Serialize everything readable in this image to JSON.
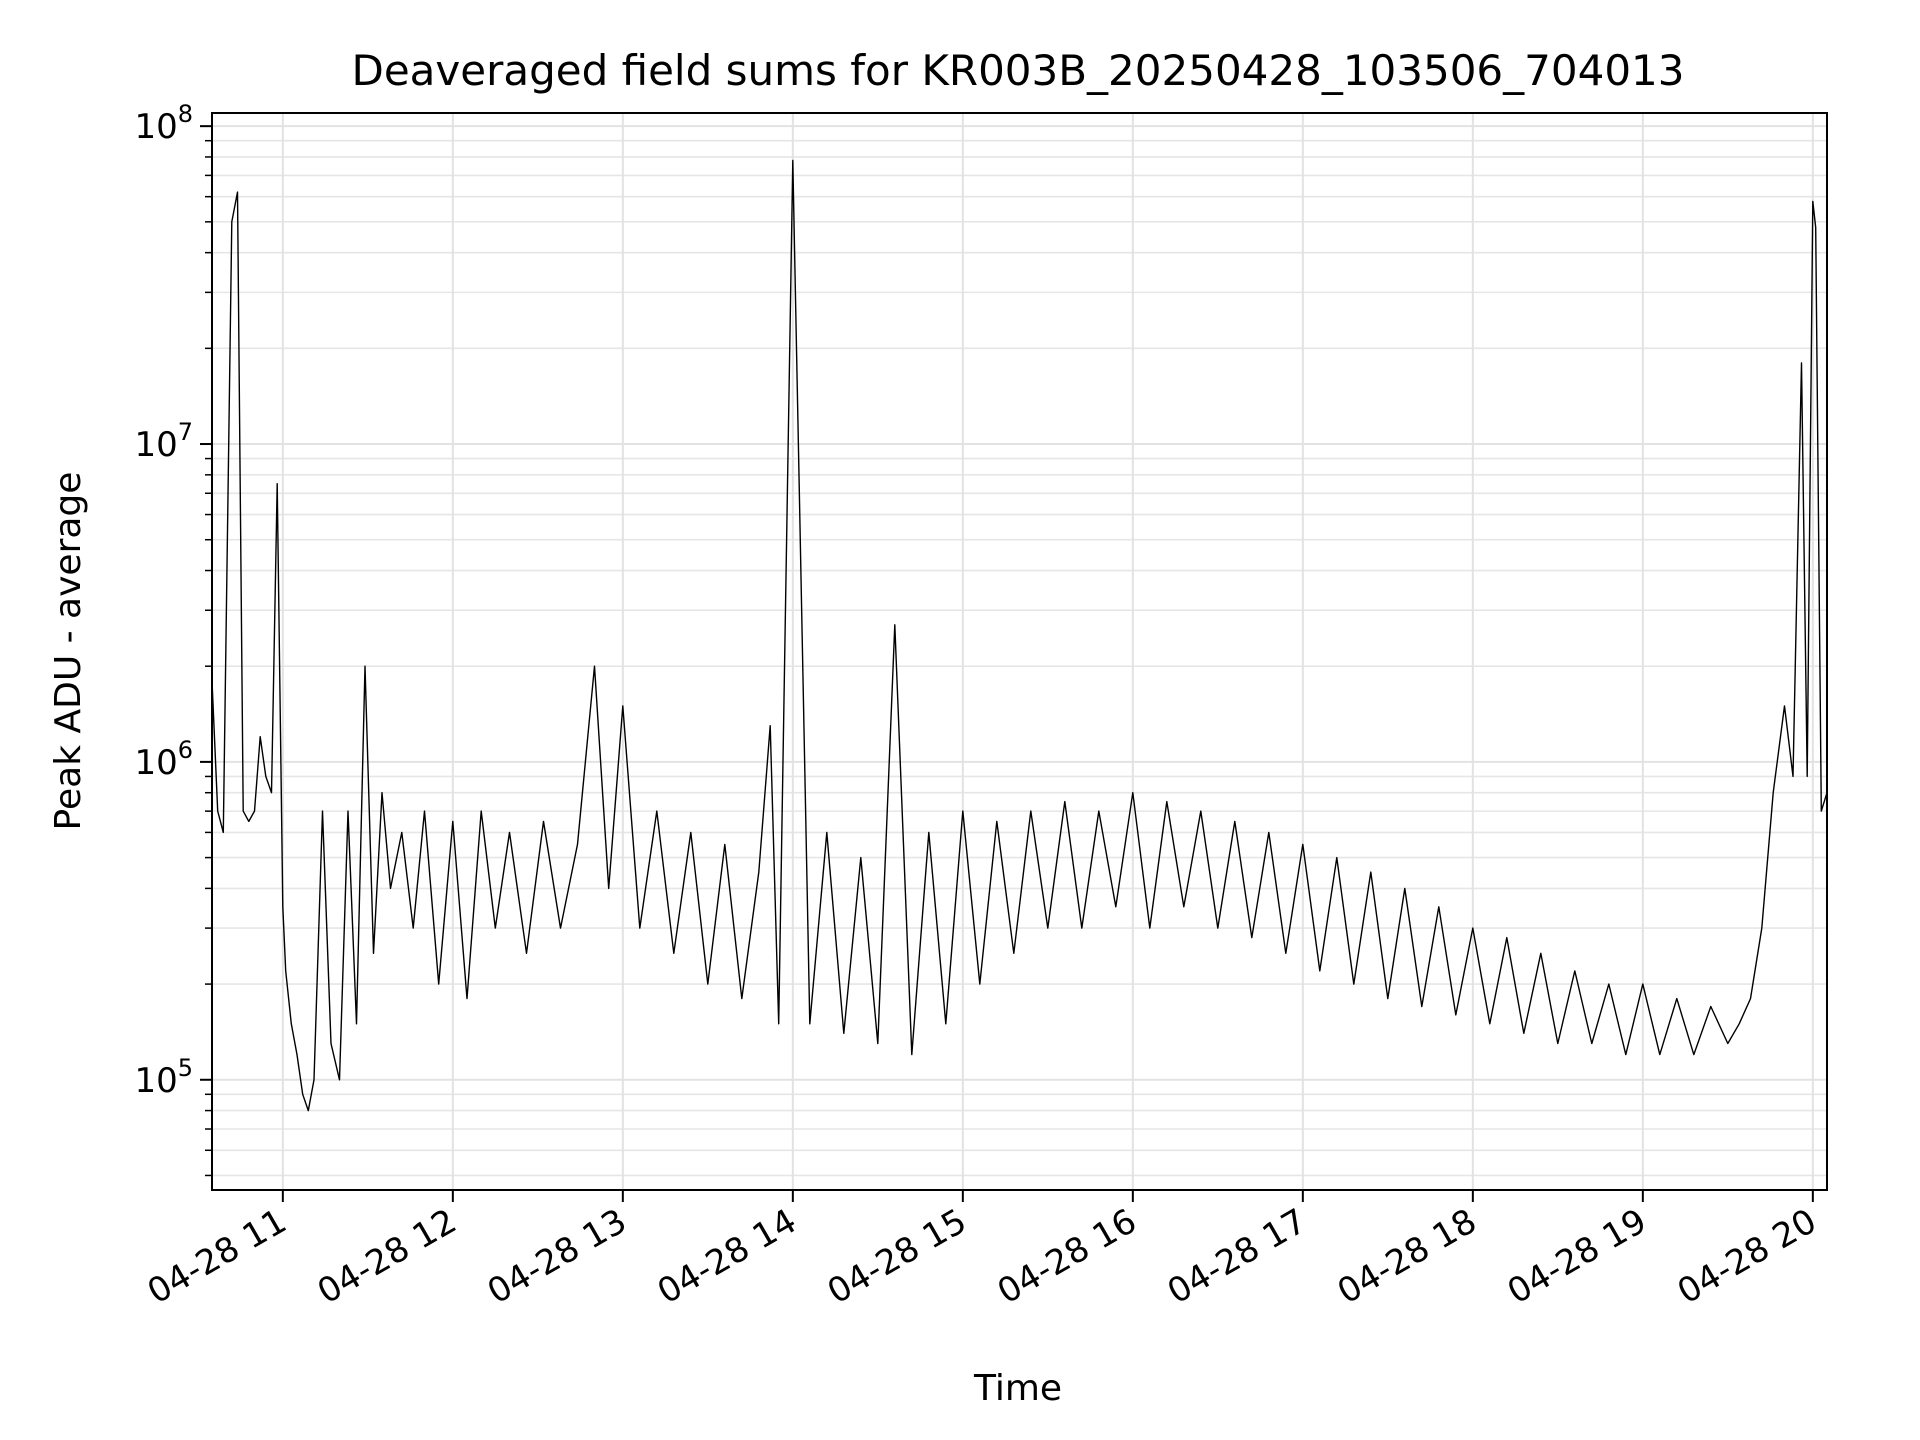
{
  "chart_data": {
    "type": "line",
    "title": "Deaveraged field sums for KR003B_20250428_103506_704013",
    "xlabel": "Time",
    "ylabel": "Peak ADU - average",
    "yscale": "log",
    "ylim": [
      45000,
      110000000
    ],
    "xlim": [
      "2025-04-28 10:35",
      "2025-04-28 20:05"
    ],
    "grid": true,
    "line_color": "#000000",
    "x_ticks": [
      {
        "value": "2025-04-28 11:00",
        "label": "04-28 11"
      },
      {
        "value": "2025-04-28 12:00",
        "label": "04-28 12"
      },
      {
        "value": "2025-04-28 13:00",
        "label": "04-28 13"
      },
      {
        "value": "2025-04-28 14:00",
        "label": "04-28 14"
      },
      {
        "value": "2025-04-28 15:00",
        "label": "04-28 15"
      },
      {
        "value": "2025-04-28 16:00",
        "label": "04-28 16"
      },
      {
        "value": "2025-04-28 17:00",
        "label": "04-28 17"
      },
      {
        "value": "2025-04-28 18:00",
        "label": "04-28 18"
      },
      {
        "value": "2025-04-28 19:00",
        "label": "04-28 19"
      },
      {
        "value": "2025-04-28 20:00",
        "label": "04-28 20"
      }
    ],
    "y_ticks": [
      {
        "value": 100000,
        "base": "10",
        "exp": "5"
      },
      {
        "value": 1000000,
        "base": "10",
        "exp": "6"
      },
      {
        "value": 10000000,
        "base": "10",
        "exp": "7"
      },
      {
        "value": 100000000,
        "base": "10",
        "exp": "8"
      }
    ],
    "series": [
      {
        "x": [
          "2025-04-28 10:35",
          "2025-04-28 10:37",
          "2025-04-28 10:39",
          "2025-04-28 10:42",
          "2025-04-28 10:44",
          "2025-04-28 10:46",
          "2025-04-28 10:48",
          "2025-04-28 10:50",
          "2025-04-28 10:52",
          "2025-04-28 10:54",
          "2025-04-28 10:56",
          "2025-04-28 10:58",
          "2025-04-28 11:00",
          "2025-04-28 11:01",
          "2025-04-28 11:03",
          "2025-04-28 11:05",
          "2025-04-28 11:07",
          "2025-04-28 11:09",
          "2025-04-28 11:11",
          "2025-04-28 11:14",
          "2025-04-28 11:17",
          "2025-04-28 11:20",
          "2025-04-28 11:23",
          "2025-04-28 11:26",
          "2025-04-28 11:29",
          "2025-04-28 11:32",
          "2025-04-28 11:35",
          "2025-04-28 11:38",
          "2025-04-28 11:42",
          "2025-04-28 11:46",
          "2025-04-28 11:50",
          "2025-04-28 11:55",
          "2025-04-28 12:00",
          "2025-04-28 12:05",
          "2025-04-28 12:10",
          "2025-04-28 12:15",
          "2025-04-28 12:20",
          "2025-04-28 12:26",
          "2025-04-28 12:32",
          "2025-04-28 12:38",
          "2025-04-28 12:44",
          "2025-04-28 12:50",
          "2025-04-28 12:55",
          "2025-04-28 13:00",
          "2025-04-28 13:06",
          "2025-04-28 13:12",
          "2025-04-28 13:18",
          "2025-04-28 13:24",
          "2025-04-28 13:30",
          "2025-04-28 13:36",
          "2025-04-28 13:42",
          "2025-04-28 13:48",
          "2025-04-28 13:52",
          "2025-04-28 13:55",
          "2025-04-28 14:00",
          "2025-04-28 14:06",
          "2025-04-28 14:12",
          "2025-04-28 14:18",
          "2025-04-28 14:24",
          "2025-04-28 14:30",
          "2025-04-28 14:36",
          "2025-04-28 14:42",
          "2025-04-28 14:48",
          "2025-04-28 14:54",
          "2025-04-28 15:00",
          "2025-04-28 15:06",
          "2025-04-28 15:12",
          "2025-04-28 15:18",
          "2025-04-28 15:24",
          "2025-04-28 15:30",
          "2025-04-28 15:36",
          "2025-04-28 15:42",
          "2025-04-28 15:48",
          "2025-04-28 15:54",
          "2025-04-28 16:00",
          "2025-04-28 16:06",
          "2025-04-28 16:12",
          "2025-04-28 16:18",
          "2025-04-28 16:24",
          "2025-04-28 16:30",
          "2025-04-28 16:36",
          "2025-04-28 16:42",
          "2025-04-28 16:48",
          "2025-04-28 16:54",
          "2025-04-28 17:00",
          "2025-04-28 17:06",
          "2025-04-28 17:12",
          "2025-04-28 17:18",
          "2025-04-28 17:24",
          "2025-04-28 17:30",
          "2025-04-28 17:36",
          "2025-04-28 17:42",
          "2025-04-28 17:48",
          "2025-04-28 17:54",
          "2025-04-28 18:00",
          "2025-04-28 18:06",
          "2025-04-28 18:12",
          "2025-04-28 18:18",
          "2025-04-28 18:24",
          "2025-04-28 18:30",
          "2025-04-28 18:36",
          "2025-04-28 18:42",
          "2025-04-28 18:48",
          "2025-04-28 18:54",
          "2025-04-28 19:00",
          "2025-04-28 19:06",
          "2025-04-28 19:12",
          "2025-04-28 19:18",
          "2025-04-28 19:24",
          "2025-04-28 19:30",
          "2025-04-28 19:34",
          "2025-04-28 19:38",
          "2025-04-28 19:42",
          "2025-04-28 19:46",
          "2025-04-28 19:50",
          "2025-04-28 19:53",
          "2025-04-28 19:56",
          "2025-04-28 19:58",
          "2025-04-28 20:00",
          "2025-04-28 20:01",
          "2025-04-28 20:03",
          "2025-04-28 20:05"
        ],
        "y": [
          1800000,
          700000,
          600000,
          50000000,
          62000000,
          700000,
          650000,
          700000,
          1200000,
          900000,
          800000,
          7500000,
          350000,
          220000,
          150000,
          120000,
          90000,
          80000,
          100000,
          700000,
          130000,
          100000,
          700000,
          150000,
          2000000,
          250000,
          800000,
          400000,
          600000,
          300000,
          700000,
          200000,
          650000,
          180000,
          700000,
          300000,
          600000,
          250000,
          650000,
          300000,
          550000,
          2000000,
          400000,
          1500000,
          300000,
          700000,
          250000,
          600000,
          200000,
          550000,
          180000,
          450000,
          1300000,
          150000,
          78000000,
          150000,
          600000,
          140000,
          500000,
          130000,
          2700000,
          120000,
          600000,
          150000,
          700000,
          200000,
          650000,
          250000,
          700000,
          300000,
          750000,
          300000,
          700000,
          350000,
          800000,
          300000,
          750000,
          350000,
          700000,
          300000,
          650000,
          280000,
          600000,
          250000,
          550000,
          220000,
          500000,
          200000,
          450000,
          180000,
          400000,
          170000,
          350000,
          160000,
          300000,
          150000,
          280000,
          140000,
          250000,
          130000,
          220000,
          130000,
          200000,
          120000,
          200000,
          120000,
          180000,
          120000,
          170000,
          130000,
          150000,
          180000,
          300000,
          800000,
          1500000,
          900000,
          18000000,
          900000,
          58000000,
          48000000,
          700000,
          800000
        ]
      }
    ]
  }
}
